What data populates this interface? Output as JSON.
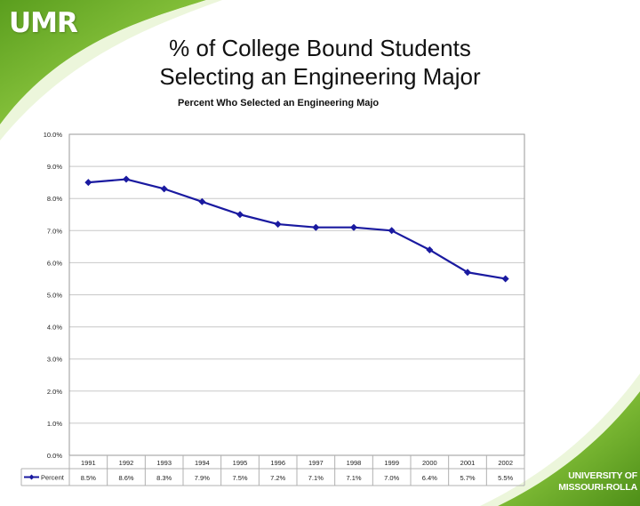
{
  "logo": {
    "text": "UMR"
  },
  "slide_title": {
    "line1": "% of College Bound Students",
    "line2": "Selecting an Engineering Major"
  },
  "university_logo": {
    "line1": "UNIVERSITY OF",
    "line2": "MISSOURI-ROLLA"
  },
  "colors": {
    "accent_green": "#7cbd2a",
    "series_blue": "#1a1aa0"
  },
  "chart_data": {
    "type": "line",
    "title": "Percent Who Selected an Engineering Majo",
    "categories": [
      "1991",
      "1992",
      "1993",
      "1994",
      "1995",
      "1996",
      "1997",
      "1998",
      "1999",
      "2000",
      "2001",
      "2002"
    ],
    "series": [
      {
        "name": "Percent",
        "values": [
          8.5,
          8.6,
          8.3,
          7.9,
          7.5,
          7.2,
          7.1,
          7.1,
          7.0,
          6.4,
          5.7,
          5.5
        ],
        "value_labels": [
          "8.5%",
          "8.6%",
          "8.3%",
          "7.9%",
          "7.5%",
          "7.2%",
          "7.1%",
          "7.1%",
          "7.0%",
          "6.4%",
          "5.7%",
          "5.5%"
        ]
      }
    ],
    "yticks": [
      "0.0%",
      "1.0%",
      "2.0%",
      "3.0%",
      "4.0%",
      "5.0%",
      "6.0%",
      "7.0%",
      "8.0%",
      "9.0%",
      "10.0%"
    ],
    "ylim": [
      0,
      10
    ],
    "grid": true,
    "data_table": true
  }
}
